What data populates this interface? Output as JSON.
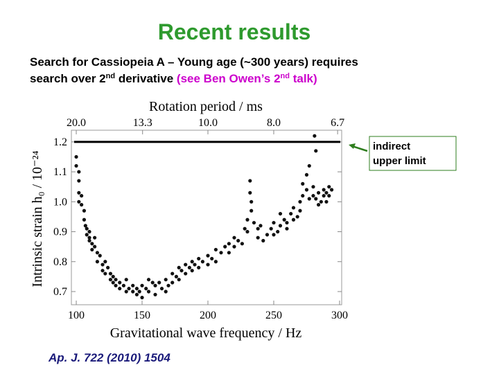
{
  "slide": {
    "title": "Recent results",
    "line1": "Search for Cassiopeia A – Young age (~300 years) requires",
    "line2": [
      "search over 2",
      "nd",
      " derivative ",
      "(see Ben Owen’s 2",
      "nd",
      " talk)"
    ],
    "citation": "Ap. J. 722 (2010) 1504"
  },
  "chart_data": {
    "type": "scatter",
    "xlabel": "Gravitational wave frequency / Hz",
    "ylabel": "Intrinsic strain h₀ / 10⁻²⁴",
    "x2label": "Rotation period / ms",
    "xlim": [
      96.3,
      301.6
    ],
    "ylim": [
      0.656,
      1.239
    ],
    "xticks": [
      100,
      150,
      200,
      250,
      300
    ],
    "yticks": [
      0.7,
      0.8,
      0.9,
      {
        "value": 1.0,
        "label": "1.0"
      },
      1.1,
      1.2
    ],
    "x2ticks": [
      {
        "value": 20.0,
        "label": "20.0"
      },
      13.3,
      {
        "value": 10.0,
        "label": "10.0"
      },
      {
        "value": 8.0,
        "label": "8.0"
      },
      6.7
    ],
    "color": "#111111",
    "limit": {
      "value": 1.2,
      "text": [
        "indirect",
        "upper limit"
      ],
      "color": "#2e7d1e"
    },
    "x": [
      100,
      100,
      102,
      102,
      102,
      102,
      104,
      104,
      106,
      106,
      107,
      108,
      108,
      110,
      110,
      110,
      112,
      112,
      114,
      114,
      116,
      116,
      118,
      120,
      120,
      122,
      122,
      124,
      126,
      126,
      128,
      128,
      130,
      130,
      133,
      133,
      136,
      138,
      138,
      140,
      143,
      143,
      146,
      146,
      148,
      150,
      150,
      153,
      155,
      155,
      158,
      160,
      160,
      163,
      165,
      168,
      168,
      170,
      173,
      173,
      176,
      178,
      178,
      180,
      183,
      183,
      186,
      188,
      188,
      190,
      193,
      193,
      196,
      200,
      200,
      203,
      206,
      206,
      210,
      213,
      216,
      216,
      220,
      220,
      223,
      226,
      228,
      230,
      230,
      232,
      232,
      233,
      233,
      235,
      238,
      238,
      240,
      242,
      245,
      248,
      250,
      250,
      253,
      255,
      255,
      258,
      260,
      260,
      263,
      265,
      265,
      268,
      270,
      270,
      272,
      272,
      275,
      275,
      277,
      277,
      281,
      280,
      280,
      282,
      282,
      284,
      284,
      286,
      288,
      288,
      290,
      290,
      292,
      292,
      294
    ],
    "values": [
      1.15,
      1.12,
      1.1,
      1.07,
      1.03,
      1.0,
      1.02,
      0.99,
      0.97,
      0.94,
      0.92,
      0.91,
      0.89,
      0.9,
      0.88,
      0.87,
      0.86,
      0.84,
      0.88,
      0.85,
      0.83,
      0.8,
      0.82,
      0.79,
      0.77,
      0.8,
      0.76,
      0.78,
      0.76,
      0.74,
      0.75,
      0.73,
      0.74,
      0.72,
      0.73,
      0.71,
      0.72,
      0.7,
      0.74,
      0.71,
      0.72,
      0.7,
      0.69,
      0.71,
      0.7,
      0.68,
      0.72,
      0.71,
      0.74,
      0.7,
      0.73,
      0.72,
      0.69,
      0.73,
      0.71,
      0.74,
      0.7,
      0.72,
      0.76,
      0.73,
      0.75,
      0.78,
      0.74,
      0.77,
      0.79,
      0.76,
      0.78,
      0.77,
      0.8,
      0.79,
      0.81,
      0.78,
      0.8,
      0.82,
      0.79,
      0.81,
      0.84,
      0.8,
      0.83,
      0.85,
      0.86,
      0.83,
      0.88,
      0.85,
      0.87,
      0.86,
      0.91,
      0.94,
      0.9,
      1.07,
      1.03,
      1.0,
      0.97,
      0.93,
      0.91,
      0.88,
      0.92,
      0.87,
      0.89,
      0.91,
      0.93,
      0.89,
      0.9,
      0.96,
      0.92,
      0.94,
      0.91,
      0.93,
      0.96,
      0.98,
      0.94,
      0.95,
      1.0,
      0.97,
      1.06,
      1.02,
      1.09,
      1.04,
      1.12,
      1.01,
      1.22,
      1.05,
      1.02,
      1.17,
      1.01,
      1.03,
      0.99,
      1.0,
      1.02,
      1.04,
      1.0,
      1.03,
      1.05,
      1.02,
      1.04
    ]
  }
}
